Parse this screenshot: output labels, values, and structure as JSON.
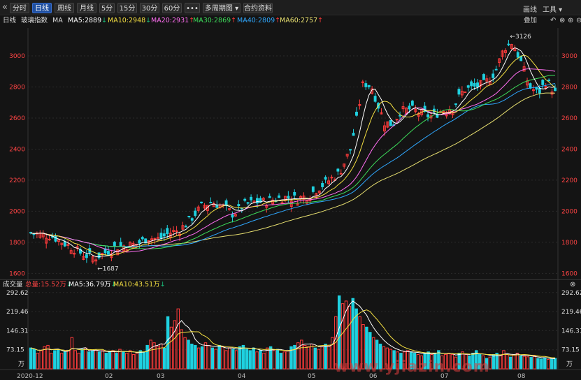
{
  "toolbar": {
    "back_icon": "«",
    "tabs": [
      "分时",
      "日线",
      "周线",
      "月线",
      "5分",
      "15分",
      "30分",
      "60分",
      "•••",
      "多周期图 ▾",
      "合约资料"
    ],
    "active_tab": 1,
    "right_draw": "画线",
    "right_tools": "工具 ▾"
  },
  "info": {
    "period": "日线",
    "name": "玻璃指数",
    "ma_label": "MA",
    "ma5": "MA5:2889",
    "ma10": "MA10:2948",
    "ma20": "MA20:2931",
    "ma30": "MA30:2869",
    "ma40": "MA40:2809",
    "ma60": "MA60:2757",
    "overlay": "叠加"
  },
  "volume_info": {
    "label": "成交量",
    "total": "总量:15.52万",
    "ma5": "MA5:36.79万",
    "ma10": "MA10:43.51万"
  },
  "colors": {
    "up": "#ff3b3b",
    "down": "#1fd1e0",
    "ma5": "#ffffff",
    "ma10": "#f5e042",
    "ma20": "#ff6ef2",
    "ma30": "#3ddc5a",
    "ma40": "#2fa8ff",
    "ma60": "#e8e070"
  },
  "watermark": "www.yjiazin.com",
  "chart_data": {
    "type": "candlestick",
    "price_axis": {
      "ticks": [
        1600,
        1800,
        2000,
        2200,
        2400,
        2600,
        2800,
        3000
      ],
      "range": [
        1570,
        3180
      ]
    },
    "volume_axis": {
      "ticks_labels": [
        "292.62",
        "219.46",
        "146.31",
        "73.15"
      ],
      "ticks": [
        292.62,
        219.46,
        146.31,
        73.15
      ],
      "unit": "万",
      "range": [
        0,
        300
      ]
    },
    "x_labels": [
      "2020-12",
      "02",
      "03",
      "04",
      "05",
      "06",
      "07",
      "08"
    ],
    "annotations": {
      "high": "3126",
      "low": "1687"
    },
    "ma_legend": [
      "MA5:2889",
      "MA10:2948",
      "MA20:2931",
      "MA30:2869",
      "MA40:2809",
      "MA60:2757"
    ],
    "close_points": [
      [
        0,
        1860
      ],
      [
        10,
        1840
      ],
      [
        20,
        1760
      ],
      [
        25,
        1720
      ],
      [
        30,
        1700
      ],
      [
        40,
        1770
      ],
      [
        50,
        1790
      ],
      [
        55,
        1830
      ],
      [
        60,
        1820
      ],
      [
        65,
        1860
      ],
      [
        70,
        1880
      ],
      [
        75,
        1950
      ],
      [
        80,
        2030
      ],
      [
        85,
        2060
      ],
      [
        90,
        2030
      ],
      [
        95,
        1980
      ],
      [
        100,
        2040
      ],
      [
        105,
        2060
      ],
      [
        110,
        2060
      ],
      [
        115,
        2080
      ],
      [
        120,
        2090
      ],
      [
        125,
        2080
      ],
      [
        130,
        2100
      ],
      [
        135,
        2150
      ],
      [
        140,
        2200
      ],
      [
        145,
        2250
      ],
      [
        150,
        2400
      ],
      [
        153,
        2600
      ],
      [
        156,
        2830
      ],
      [
        160,
        2800
      ],
      [
        163,
        2680
      ],
      [
        166,
        2570
      ],
      [
        170,
        2560
      ],
      [
        173,
        2640
      ],
      [
        178,
        2660
      ],
      [
        183,
        2630
      ],
      [
        188,
        2610
      ],
      [
        193,
        2650
      ],
      [
        198,
        2670
      ],
      [
        203,
        2780
      ],
      [
        208,
        2800
      ],
      [
        213,
        2820
      ],
      [
        218,
        2900
      ],
      [
        222,
        3050
      ],
      [
        226,
        3090
      ],
      [
        230,
        2960
      ],
      [
        234,
        2800
      ],
      [
        238,
        2760
      ],
      [
        242,
        2840
      ],
      [
        246,
        2760
      ]
    ],
    "volume_bars": [
      80,
      75,
      60,
      70,
      85,
      90,
      60,
      70,
      75,
      60,
      65,
      70,
      120,
      70,
      60,
      75,
      80,
      65,
      70,
      70,
      65,
      70,
      60,
      65,
      70,
      60,
      75,
      65,
      60,
      70,
      55,
      60,
      70,
      65,
      90,
      110,
      100,
      85,
      95,
      80,
      200,
      160,
      185,
      230,
      150,
      120,
      110,
      95,
      90,
      80,
      85,
      100,
      90,
      80,
      75,
      90,
      85,
      70,
      80,
      75,
      70,
      85,
      90,
      75,
      70,
      80,
      65,
      70,
      60,
      80,
      85,
      70,
      75,
      60,
      65,
      70,
      85,
      90,
      100,
      110,
      90,
      85,
      95,
      80,
      75,
      85,
      95,
      90,
      120,
      200,
      280,
      250,
      260,
      240,
      270,
      230,
      200,
      170,
      160,
      140,
      120,
      110,
      95,
      85,
      80,
      75,
      70,
      65,
      60,
      65,
      70,
      65,
      60,
      55,
      50,
      60,
      65,
      55,
      60,
      70,
      50,
      55,
      60,
      55,
      45,
      60,
      65,
      55,
      50,
      60,
      70,
      55,
      50,
      40,
      45,
      55,
      60,
      50,
      70,
      55,
      45,
      55,
      60,
      50,
      48,
      46,
      44,
      50,
      40,
      38,
      42,
      36,
      38,
      40
    ]
  }
}
